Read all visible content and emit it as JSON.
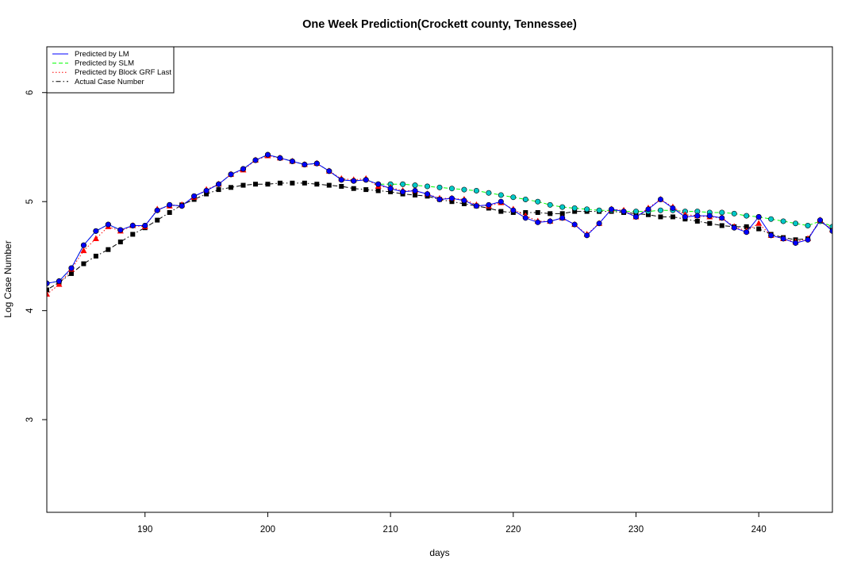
{
  "chart_data": {
    "type": "line",
    "title": "One Week Prediction(Crockett county, Tennessee)",
    "xlabel": "days",
    "ylabel": "Log Case Number",
    "xlim": [
      182,
      246
    ],
    "ylim": [
      2.15,
      6.42
    ],
    "xticks": [
      190,
      200,
      210,
      220,
      230,
      240
    ],
    "yticks": [
      3,
      4,
      5,
      6
    ],
    "grid": false,
    "legend_position": "top-left",
    "x": [
      182,
      183,
      184,
      185,
      186,
      187,
      188,
      189,
      190,
      191,
      192,
      193,
      194,
      195,
      196,
      197,
      198,
      199,
      200,
      201,
      202,
      203,
      204,
      205,
      206,
      207,
      208,
      209,
      210,
      211,
      212,
      213,
      214,
      215,
      216,
      217,
      218,
      219,
      220,
      221,
      222,
      223,
      224,
      225,
      226,
      227,
      228,
      229,
      230,
      231,
      232,
      233,
      234,
      235,
      236,
      237,
      238,
      239,
      240,
      241,
      242,
      243,
      244,
      245,
      246
    ],
    "series": [
      {
        "name": "Predicted by LM",
        "color": "#0000ff",
        "line_style": "solid",
        "marker": "filled-circle",
        "marker_color": "#0000ff",
        "values": [
          4.25,
          4.27,
          4.39,
          4.6,
          4.73,
          4.79,
          4.74,
          4.78,
          4.78,
          4.92,
          4.97,
          4.96,
          5.05,
          5.1,
          5.16,
          5.25,
          5.3,
          5.38,
          5.43,
          5.4,
          5.37,
          5.34,
          5.35,
          5.28,
          5.2,
          5.19,
          5.2,
          5.16,
          5.12,
          5.09,
          5.1,
          5.07,
          5.02,
          5.03,
          5.01,
          4.96,
          4.97,
          5.0,
          4.92,
          4.85,
          4.81,
          4.82,
          4.85,
          4.79,
          4.69,
          4.8,
          4.93,
          4.91,
          4.86,
          4.93,
          5.02,
          4.94,
          4.86,
          4.87,
          4.87,
          4.85,
          4.76,
          4.72,
          4.86,
          4.69,
          4.66,
          4.62,
          4.65,
          4.83,
          4.73
        ]
      },
      {
        "name": "Predicted by SLM",
        "color": "#00ff00",
        "line_style": "dashed",
        "marker": "filled-circle",
        "marker_color": "#00c8c8",
        "values": [
          4.25,
          4.27,
          4.39,
          4.6,
          4.73,
          4.79,
          4.74,
          4.78,
          4.78,
          4.92,
          4.97,
          4.96,
          5.05,
          5.1,
          5.16,
          5.25,
          5.3,
          5.38,
          5.43,
          5.4,
          5.37,
          5.34,
          5.35,
          5.28,
          5.2,
          5.19,
          5.2,
          5.16,
          5.16,
          5.16,
          5.15,
          5.14,
          5.13,
          5.12,
          5.11,
          5.1,
          5.08,
          5.06,
          5.04,
          5.02,
          5.0,
          4.97,
          4.95,
          4.94,
          4.93,
          4.92,
          4.92,
          4.91,
          4.91,
          4.91,
          4.92,
          4.92,
          4.91,
          4.91,
          4.9,
          4.9,
          4.89,
          4.87,
          4.86,
          4.84,
          4.82,
          4.8,
          4.78,
          4.82,
          4.77
        ]
      },
      {
        "name": "Predicted by Block GRF Last",
        "color": "#ff0000",
        "line_style": "dotted",
        "marker": "filled-triangle",
        "marker_color": "#ff0000",
        "values": [
          4.15,
          4.24,
          4.38,
          4.55,
          4.66,
          4.77,
          4.73,
          4.78,
          4.77,
          4.93,
          4.96,
          4.97,
          5.04,
          5.11,
          5.16,
          5.25,
          5.29,
          5.38,
          5.42,
          5.4,
          5.37,
          5.34,
          5.35,
          5.28,
          5.21,
          5.2,
          5.21,
          5.14,
          5.13,
          5.1,
          5.1,
          5.07,
          5.03,
          5.03,
          5.02,
          4.97,
          4.96,
          4.99,
          4.93,
          4.87,
          4.82,
          4.82,
          4.85,
          4.79,
          4.7,
          4.8,
          4.93,
          4.92,
          4.86,
          4.94,
          5.02,
          4.95,
          4.88,
          4.87,
          4.86,
          4.85,
          4.77,
          4.73,
          4.8,
          4.69,
          4.66,
          4.63,
          4.66,
          4.83,
          4.74
        ]
      },
      {
        "name": "Actual Case Number",
        "color": "#000000",
        "line_style": "dot-dash",
        "marker": "filled-square",
        "marker_color": "#000000",
        "values": [
          4.19,
          4.26,
          4.34,
          4.43,
          4.5,
          4.56,
          4.63,
          4.7,
          4.76,
          4.83,
          4.9,
          4.97,
          5.02,
          5.07,
          5.11,
          5.13,
          5.15,
          5.16,
          5.16,
          5.17,
          5.17,
          5.17,
          5.16,
          5.15,
          5.14,
          5.12,
          5.11,
          5.1,
          5.09,
          5.07,
          5.06,
          5.05,
          5.02,
          5.0,
          4.98,
          4.96,
          4.94,
          4.91,
          4.9,
          4.9,
          4.9,
          4.89,
          4.89,
          4.91,
          4.91,
          4.91,
          4.91,
          4.9,
          4.89,
          4.88,
          4.86,
          4.86,
          4.84,
          4.82,
          4.8,
          4.78,
          4.77,
          4.77,
          4.75,
          4.7,
          4.67,
          4.65,
          4.66,
          4.82,
          4.74
        ]
      }
    ]
  }
}
